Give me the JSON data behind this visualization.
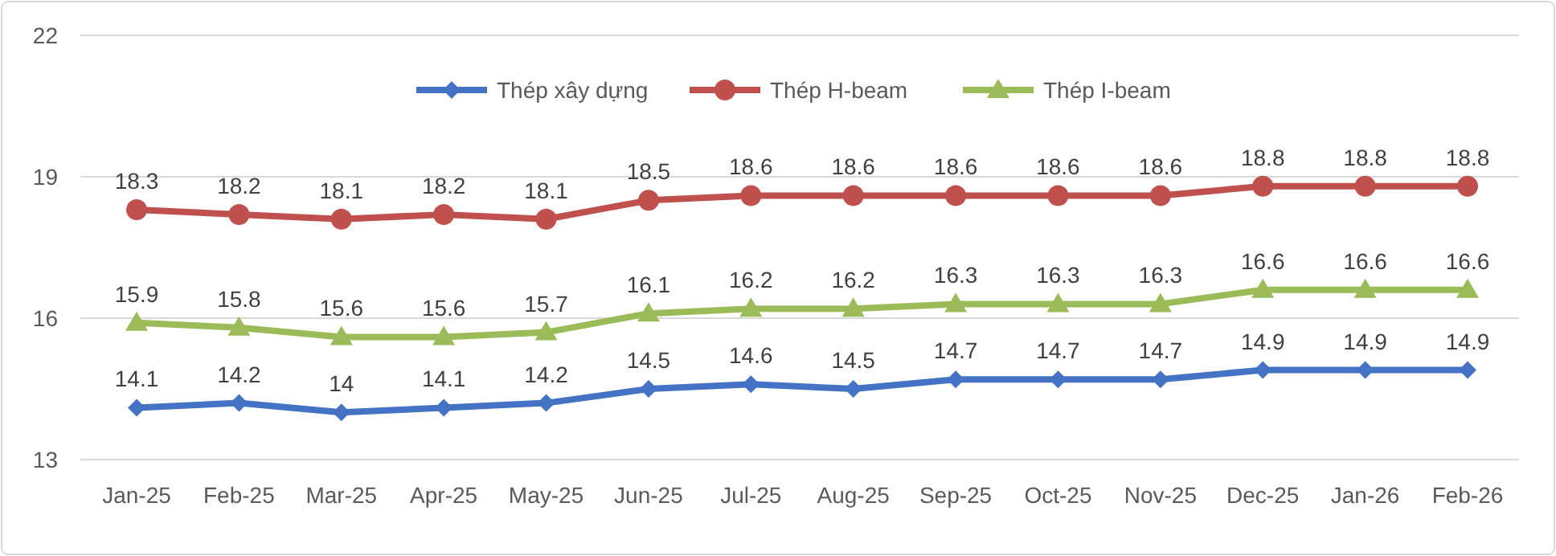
{
  "chart_data": {
    "type": "line",
    "categories": [
      "Jan-25",
      "Feb-25",
      "Mar-25",
      "Apr-25",
      "May-25",
      "Jun-25",
      "Jul-25",
      "Aug-25",
      "Sep-25",
      "Oct-25",
      "Nov-25",
      "Dec-25",
      "Jan-26",
      "Feb-26"
    ],
    "series": [
      {
        "name": "Thép xây dựng",
        "color": "#4472c4",
        "marker": "diamond",
        "values": [
          14.1,
          14.2,
          14,
          14.1,
          14.2,
          14.5,
          14.6,
          14.5,
          14.7,
          14.7,
          14.7,
          14.9,
          14.9,
          14.9
        ]
      },
      {
        "name": "Thép H-beam",
        "color": "#c0504d",
        "marker": "circle",
        "values": [
          18.3,
          18.2,
          18.1,
          18.2,
          18.1,
          18.5,
          18.6,
          18.6,
          18.6,
          18.6,
          18.6,
          18.8,
          18.8,
          18.8
        ]
      },
      {
        "name": "Thép I-beam",
        "color": "#9bbb59",
        "marker": "triangle",
        "values": [
          15.9,
          15.8,
          15.6,
          15.6,
          15.7,
          16.1,
          16.2,
          16.2,
          16.3,
          16.3,
          16.3,
          16.6,
          16.6,
          16.6
        ]
      }
    ],
    "ylim": [
      13,
      22
    ],
    "yticks": [
      13,
      16,
      19,
      22
    ],
    "grid": "y",
    "legend": "top",
    "data_labels": true,
    "line_style": "solid"
  }
}
